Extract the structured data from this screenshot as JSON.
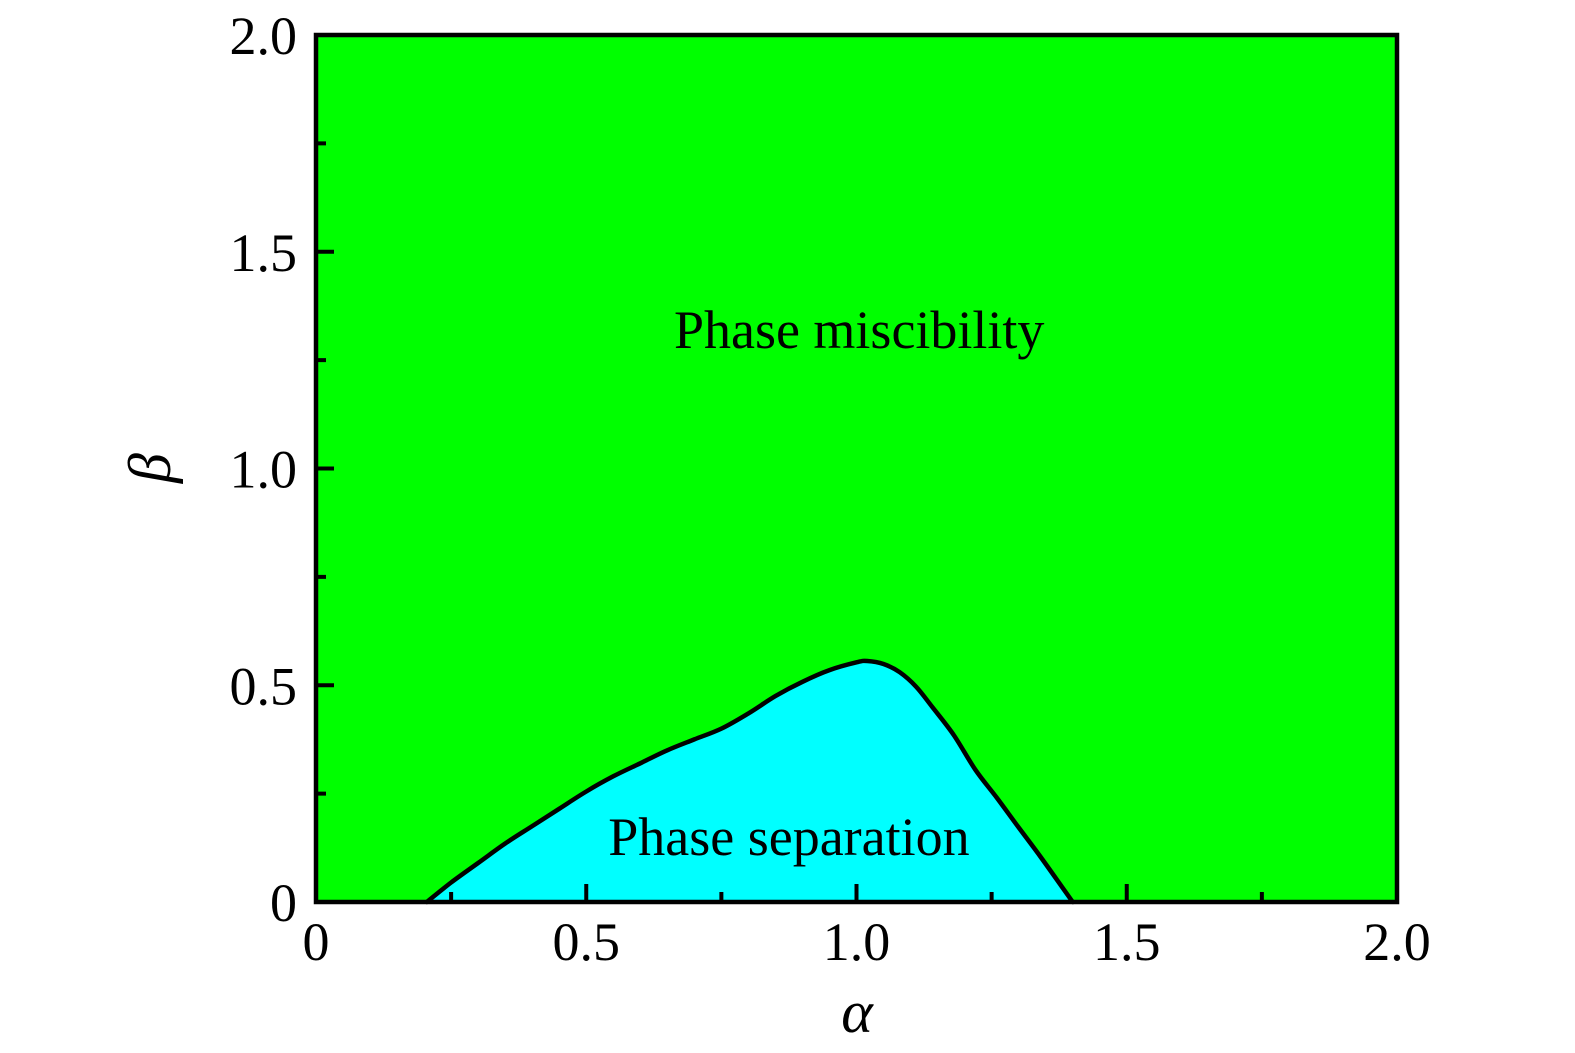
{
  "chart_data": {
    "type": "area",
    "title": "",
    "xlabel": "α",
    "ylabel": "β",
    "xlim": [
      0,
      2
    ],
    "ylim": [
      0,
      2
    ],
    "grid": false,
    "legend": "none",
    "frame_color": "#000000",
    "x_ticks": {
      "major": [
        0,
        0.5,
        1.0,
        1.5,
        2.0
      ],
      "labels": [
        "0",
        "0.5",
        "1.0",
        "1.5",
        "2.0"
      ],
      "minor_step": 0.25
    },
    "y_ticks": {
      "major": [
        0,
        0.5,
        1.0,
        1.5,
        2.0
      ],
      "labels": [
        "0",
        "0.5",
        "1.0",
        "1.5",
        "2.0"
      ],
      "minor_step": 0.25
    },
    "regions": [
      {
        "name": "phase-miscibility",
        "label": "Phase miscibility",
        "color": "#00ff00",
        "label_pos": [
          1.005,
          1.278
        ]
      },
      {
        "name": "phase-separation",
        "label": "Phase separation",
        "color": "#00ffff",
        "label_pos": [
          0.875,
          0.108
        ]
      }
    ],
    "boundary_curve": {
      "color": "#000000",
      "points": [
        [
          0.205,
          0.0
        ],
        [
          0.25,
          0.045
        ],
        [
          0.3,
          0.09
        ],
        [
          0.35,
          0.135
        ],
        [
          0.4,
          0.175
        ],
        [
          0.45,
          0.215
        ],
        [
          0.5,
          0.255
        ],
        [
          0.55,
          0.29
        ],
        [
          0.6,
          0.32
        ],
        [
          0.65,
          0.35
        ],
        [
          0.7,
          0.375
        ],
        [
          0.75,
          0.4
        ],
        [
          0.8,
          0.435
        ],
        [
          0.85,
          0.475
        ],
        [
          0.9,
          0.508
        ],
        [
          0.95,
          0.535
        ],
        [
          1.0,
          0.553
        ],
        [
          1.02,
          0.556
        ],
        [
          1.05,
          0.549
        ],
        [
          1.08,
          0.53
        ],
        [
          1.11,
          0.497
        ],
        [
          1.14,
          0.45
        ],
        [
          1.18,
          0.385
        ],
        [
          1.22,
          0.305
        ],
        [
          1.26,
          0.24
        ],
        [
          1.3,
          0.172
        ],
        [
          1.34,
          0.105
        ],
        [
          1.38,
          0.035
        ],
        [
          1.4,
          0.0
        ]
      ]
    }
  }
}
